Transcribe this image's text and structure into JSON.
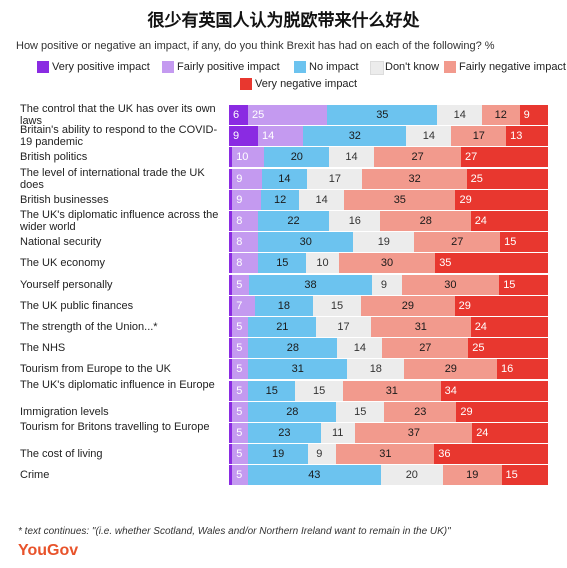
{
  "title": "很少有英国人认为脱欧带来什么好处",
  "subtitle": "How positive or negative an impact, if any, do you think Brexit has had on each of the following? %",
  "footnote": "* text continues: \"(i.e. whether Scotland, Wales and/or Northern Ireland want to remain in the UK)\"",
  "logo": "YouGov",
  "colors": {
    "very_positive": "#8a2be2",
    "fairly_positive": "#c49af0",
    "no_impact": "#6cc3ef",
    "dont_know": "#ececec",
    "fairly_negative": "#f29a8d",
    "very_negative": "#e8372f"
  },
  "chart_data": {
    "type": "bar",
    "orientation": "horizontal",
    "stacked": true,
    "legend_position": "top",
    "grid": false,
    "categories": [
      "The control that the UK has over its own laws",
      "Britain's ability to respond to the COVID-19 pandemic",
      "British politics",
      "The level of international trade the UK does",
      "British businesses",
      "The UK's diplomatic influence across the wider world",
      "National security",
      "The UK economy",
      "Yourself personally",
      "The UK public finances",
      "The strength of the Union...*",
      "The NHS",
      "Tourism from Europe to the UK",
      "The UK's diplomatic influence in Europe",
      "Immigration levels",
      "Tourism for Britons travelling to Europe",
      "The cost of living",
      "Crime"
    ],
    "series": [
      {
        "name": "Very positive impact",
        "key": "very_positive",
        "values": [
          6,
          9,
          1,
          1,
          1,
          1,
          1,
          1,
          1,
          1,
          1,
          1,
          1,
          1,
          1,
          1,
          1,
          1
        ],
        "labels": [
          "6",
          "9",
          "",
          "",
          "",
          "",
          "",
          "",
          "",
          "",
          "",
          "",
          "",
          "",
          "",
          "",
          "",
          ""
        ]
      },
      {
        "name": "Fairly positive impact",
        "key": "fairly_positive",
        "values": [
          25,
          14,
          10,
          9,
          9,
          8,
          8,
          8,
          5,
          7,
          5,
          5,
          5,
          5,
          5,
          5,
          5,
          5
        ],
        "labels": [
          "25",
          "14",
          "10",
          "9",
          "9",
          "8",
          "8",
          "8",
          "5",
          "7",
          "5",
          "5",
          "5",
          "5",
          "5",
          "5",
          "5",
          "5"
        ]
      },
      {
        "name": "No impact",
        "key": "no_impact",
        "values": [
          35,
          32,
          20,
          14,
          12,
          22,
          30,
          15,
          38,
          18,
          21,
          28,
          31,
          15,
          28,
          23,
          19,
          43
        ],
        "labels": [
          "35",
          "32",
          "20",
          "14",
          "12",
          "22",
          "30",
          "15",
          "38",
          "18",
          "21",
          "28",
          "31",
          "15",
          "28",
          "23",
          "19",
          "43"
        ]
      },
      {
        "name": "Don't know",
        "key": "dont_know",
        "values": [
          14,
          14,
          14,
          17,
          14,
          16,
          19,
          10,
          9,
          15,
          17,
          14,
          18,
          15,
          15,
          11,
          9,
          20
        ],
        "labels": [
          "14",
          "14",
          "14",
          "17",
          "14",
          "16",
          "19",
          "10",
          "9",
          "15",
          "17",
          "14",
          "18",
          "15",
          "15",
          "11",
          "9",
          "20"
        ]
      },
      {
        "name": "Fairly negative impact",
        "key": "fairly_negative",
        "values": [
          12,
          17,
          27,
          32,
          35,
          28,
          27,
          30,
          30,
          29,
          31,
          27,
          29,
          31,
          23,
          37,
          31,
          19
        ],
        "labels": [
          "12",
          "17",
          "27",
          "32",
          "35",
          "28",
          "27",
          "30",
          "30",
          "29",
          "31",
          "27",
          "29",
          "31",
          "23",
          "37",
          "31",
          "19"
        ]
      },
      {
        "name": "Very negative impact",
        "key": "very_negative",
        "values": [
          9,
          13,
          27,
          25,
          29,
          24,
          15,
          35,
          15,
          29,
          24,
          25,
          16,
          34,
          29,
          24,
          36,
          15
        ],
        "labels": [
          "9",
          "13",
          "27",
          "25",
          "29",
          "24",
          "15",
          "35",
          "15",
          "29",
          "24",
          "25",
          "16",
          "34",
          "29",
          "24",
          "36",
          "15"
        ]
      }
    ]
  }
}
